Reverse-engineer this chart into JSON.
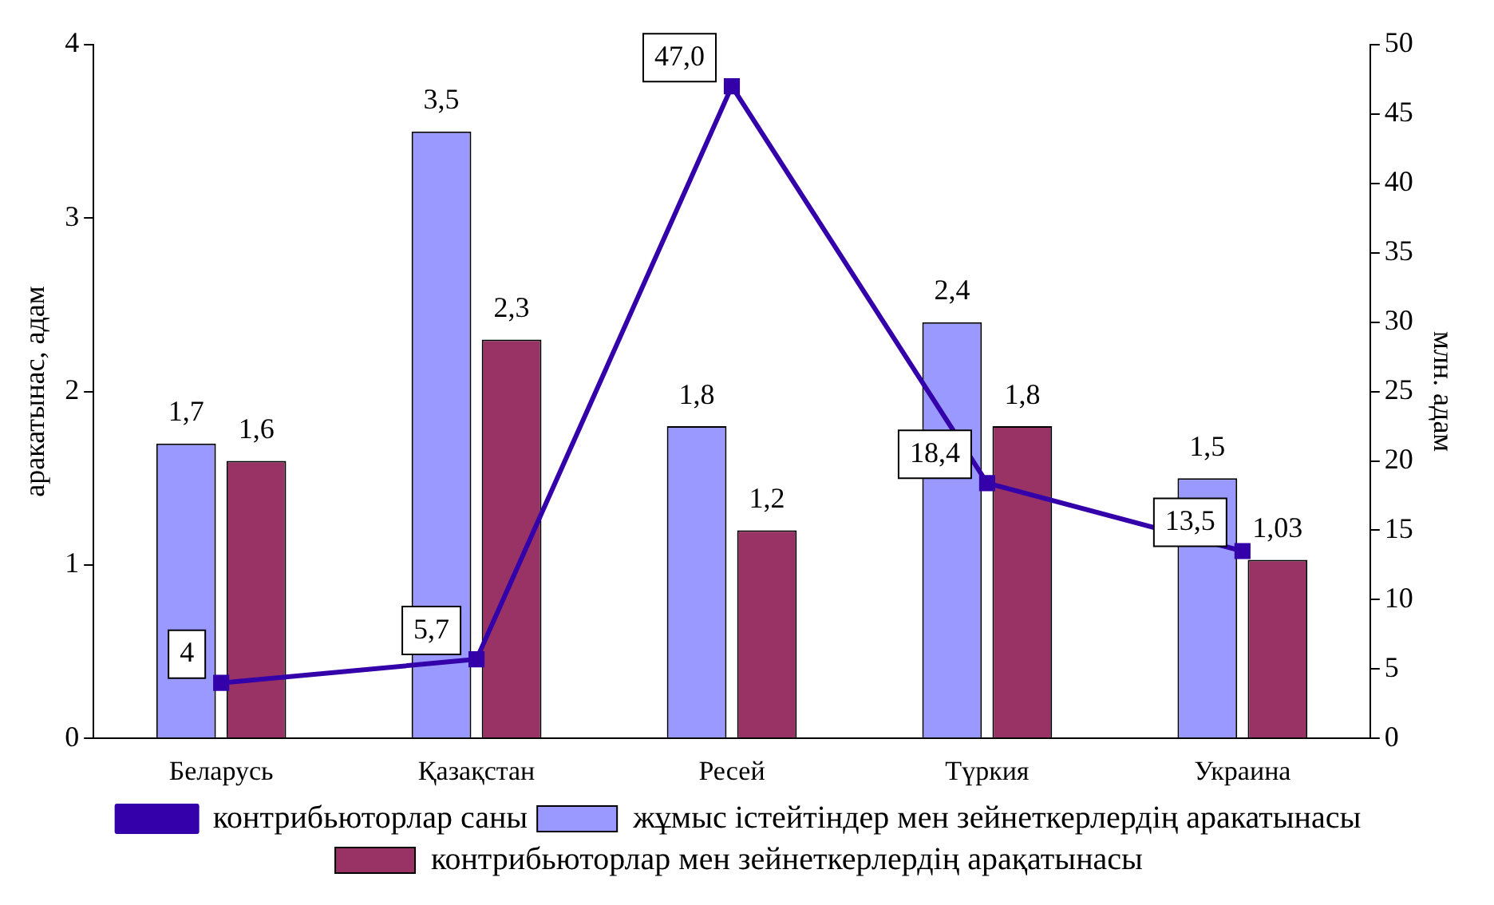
{
  "chart_data": {
    "type": "bar",
    "ylabel": "аракатынас, адам",
    "y2label": "млн. адам",
    "categories": [
      "Беларусь",
      "Қазақстан",
      "Ресей",
      "Түркия",
      "Украина"
    ],
    "series": [
      {
        "name": "жұмыс істейтіндер мен зейнеткерлердің аракатынасы",
        "color": "#9999ff",
        "values": [
          1.7,
          3.5,
          1.8,
          2.4,
          1.5
        ],
        "value_labels": [
          "1,7",
          "3,5",
          "1,8",
          "2,4",
          "1,5"
        ]
      },
      {
        "name": "контрибьюторлар мен зейнеткерлердің арақатынасы",
        "color": "#993366",
        "values": [
          1.6,
          2.3,
          1.2,
          1.8,
          1.03
        ],
        "value_labels": [
          "1,6",
          "2,3",
          "1,2",
          "1,8",
          "1,03"
        ]
      },
      {
        "name": "контрибьюторлар саны",
        "type": "line",
        "axis": "y2",
        "color": "#3300aa",
        "marker": "square",
        "values": [
          4,
          5.7,
          47.0,
          18.4,
          13.5
        ],
        "value_labels": [
          "4",
          "5,7",
          "47,0",
          "18,4",
          "13,5"
        ]
      }
    ],
    "ylim": [
      0,
      4
    ],
    "yticks": [
      0,
      1,
      2,
      3,
      4
    ],
    "y2lim": [
      0,
      50
    ],
    "y2ticks": [
      0,
      5,
      10,
      15,
      20,
      25,
      30,
      35,
      40,
      45,
      50
    ],
    "grid": false,
    "legend": "bottom"
  }
}
